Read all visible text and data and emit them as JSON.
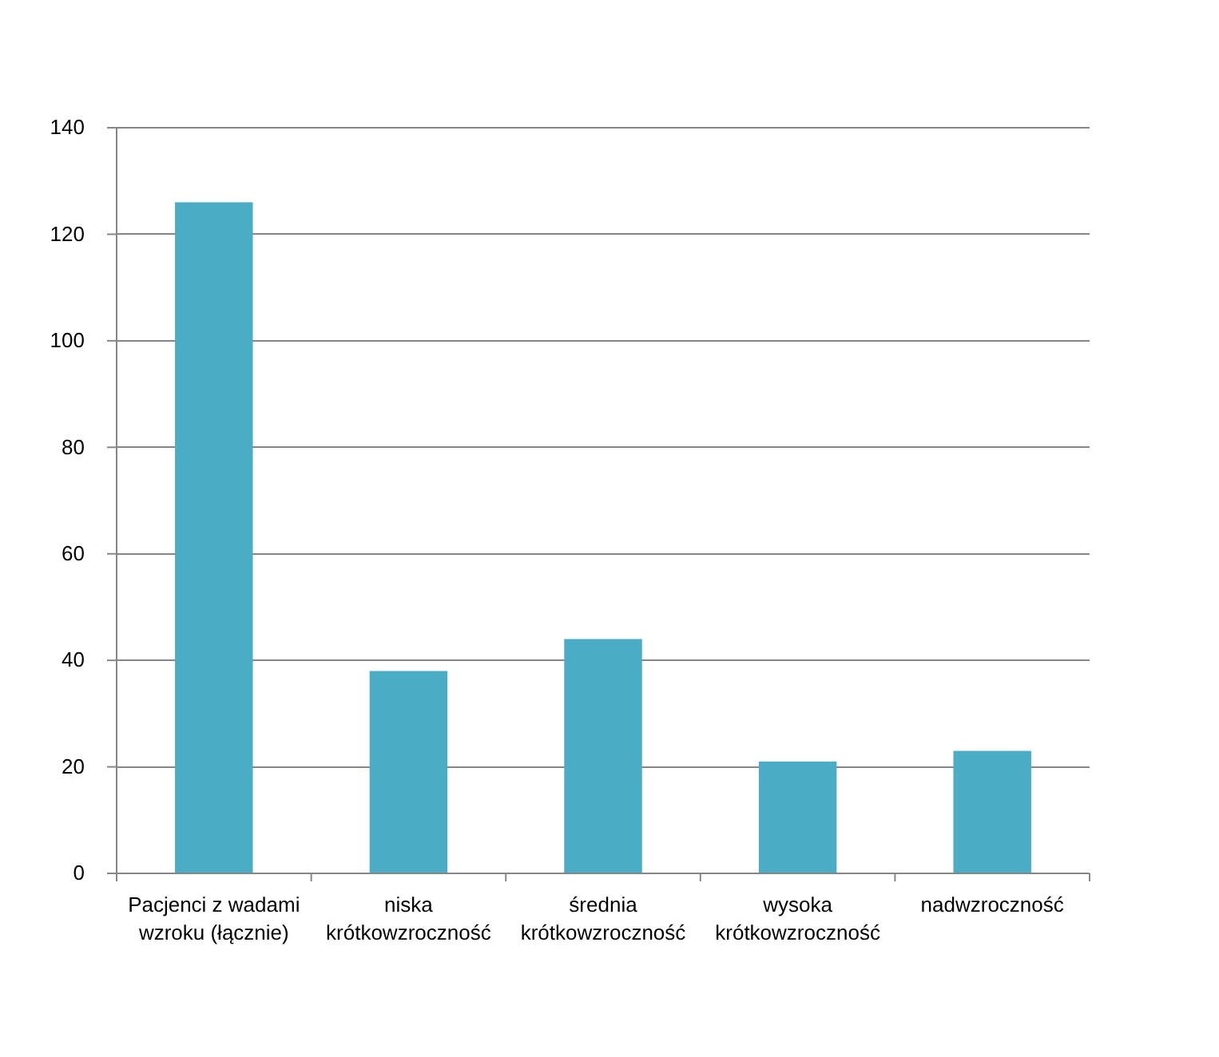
{
  "chart_data": {
    "type": "bar",
    "categories": [
      "Pacjenci z wadami wzroku (łącznie)",
      "niska krótkowzroczność",
      "średnia krótkowzroczność",
      "wysoka krótkowzroczność",
      "nadwzroczność"
    ],
    "values": [
      126,
      38,
      44,
      21,
      23
    ],
    "color": "#4bacc6",
    "ylim": [
      0,
      140
    ],
    "yticks": [
      0,
      20,
      40,
      60,
      80,
      100,
      120,
      140
    ],
    "grid": "y"
  }
}
